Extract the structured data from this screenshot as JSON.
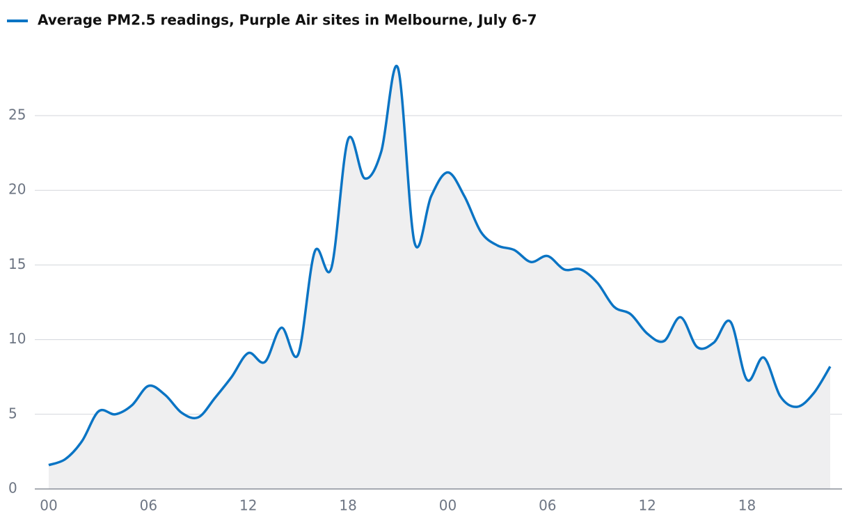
{
  "chart_data": {
    "type": "area",
    "categories": [
      "00",
      null,
      null,
      null,
      null,
      null,
      "06",
      null,
      null,
      null,
      null,
      null,
      "12",
      null,
      null,
      null,
      null,
      null,
      "18",
      null,
      null,
      null,
      null,
      null,
      "00",
      null,
      null,
      null,
      null,
      null,
      "06",
      null,
      null,
      null,
      null,
      null,
      "12",
      null,
      null,
      null,
      null,
      null,
      "18",
      null,
      null,
      null,
      null,
      null
    ],
    "series": [
      {
        "name": "Average PM2.5 readings, Purple Air sites in Melbourne, July 6-7",
        "color": "#0a74c4",
        "values": [
          1.6,
          2.0,
          3.2,
          5.2,
          5.0,
          5.6,
          6.9,
          6.3,
          5.1,
          4.8,
          6.1,
          7.5,
          9.1,
          8.5,
          10.8,
          9.0,
          15.9,
          14.8,
          23.4,
          20.8,
          22.6,
          28.2,
          16.5,
          19.6,
          21.2,
          19.6,
          17.2,
          16.3,
          16.0,
          15.2,
          15.6,
          14.7,
          14.7,
          13.8,
          12.2,
          11.7,
          10.4,
          9.9,
          11.5,
          9.5,
          9.8,
          11.2,
          7.3,
          8.8,
          6.2,
          5.5,
          6.4,
          8.2
        ]
      }
    ],
    "area_color": "#efeff0",
    "ylim": [
      0,
      30
    ],
    "yticks": [
      0,
      5,
      10,
      15,
      20,
      25
    ],
    "grid": true
  }
}
